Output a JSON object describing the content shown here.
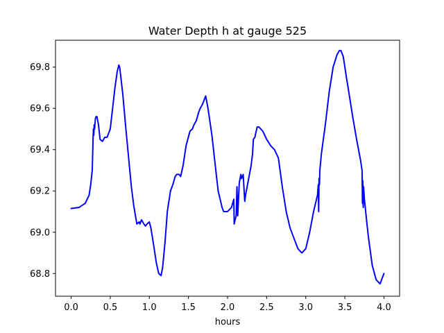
{
  "chart_data": {
    "type": "line",
    "title": "Water Depth h at gauge 525",
    "xlabel": "hours",
    "ylabel": "",
    "xlim": [
      -0.2,
      4.2
    ],
    "ylim": [
      68.69,
      69.93
    ],
    "xticks": [
      "0.0",
      "0.5",
      "1.0",
      "1.5",
      "2.0",
      "2.5",
      "3.0",
      "3.5",
      "4.0"
    ],
    "yticks": [
      "68.8",
      "69.0",
      "69.2",
      "69.4",
      "69.6",
      "69.8"
    ],
    "grid": false,
    "colors": {
      "line": "#0000ff",
      "frame": "#000000"
    },
    "series": [
      {
        "x": [
          0.0,
          0.1,
          0.18,
          0.23,
          0.25,
          0.27,
          0.28,
          0.285,
          0.29,
          0.295,
          0.3,
          0.31,
          0.32,
          0.33,
          0.35,
          0.37,
          0.4,
          0.43,
          0.46,
          0.5,
          0.53,
          0.56,
          0.59,
          0.61,
          0.62,
          0.63,
          0.66,
          0.7,
          0.72,
          0.75,
          0.77,
          0.8,
          0.84,
          0.87,
          0.88,
          0.9,
          0.93,
          0.95,
          0.97,
          1.0,
          1.02,
          1.05,
          1.07,
          1.09,
          1.12,
          1.15,
          1.17,
          1.2,
          1.23,
          1.27,
          1.3,
          1.33,
          1.35,
          1.38,
          1.4,
          1.43,
          1.47,
          1.52,
          1.55,
          1.57,
          1.6,
          1.63,
          1.65,
          1.68,
          1.72,
          1.75,
          1.8,
          1.85,
          1.88,
          1.93,
          1.95,
          2.0,
          2.05,
          2.08,
          2.085,
          2.09,
          2.11,
          2.12,
          2.13,
          2.15,
          2.16,
          2.17,
          2.18,
          2.2,
          2.22,
          2.23,
          2.25,
          2.28,
          2.3,
          2.32,
          2.33,
          2.35,
          2.36,
          2.38,
          2.4,
          2.45,
          2.5,
          2.55,
          2.6,
          2.65,
          2.7,
          2.75,
          2.8,
          2.85,
          2.9,
          2.95,
          3.0,
          3.05,
          3.1,
          3.15,
          3.16,
          3.165,
          3.17,
          3.175,
          3.18,
          3.2,
          3.25,
          3.3,
          3.35,
          3.4,
          3.43,
          3.45,
          3.48,
          3.52,
          3.55,
          3.6,
          3.65,
          3.7,
          3.72,
          3.725,
          3.73,
          3.735,
          3.74,
          3.75,
          3.78,
          3.8,
          3.85,
          3.9,
          3.95,
          4.0
        ],
        "y": [
          69.115,
          69.12,
          69.14,
          69.18,
          69.23,
          69.3,
          69.45,
          69.5,
          69.47,
          69.52,
          69.5,
          69.55,
          69.56,
          69.56,
          69.52,
          69.45,
          69.44,
          69.46,
          69.46,
          69.5,
          69.6,
          69.7,
          69.78,
          69.81,
          69.8,
          69.77,
          69.67,
          69.5,
          69.42,
          69.3,
          69.22,
          69.13,
          69.04,
          69.05,
          69.04,
          69.06,
          69.04,
          69.03,
          69.04,
          69.05,
          69.02,
          68.95,
          68.9,
          68.85,
          68.8,
          68.79,
          68.83,
          68.95,
          69.1,
          69.2,
          69.23,
          69.27,
          69.28,
          69.28,
          69.27,
          69.32,
          69.42,
          69.49,
          69.5,
          69.52,
          69.54,
          69.58,
          69.6,
          69.62,
          69.66,
          69.6,
          69.47,
          69.3,
          69.2,
          69.12,
          69.1,
          69.1,
          69.12,
          69.16,
          69.04,
          69.05,
          69.08,
          69.22,
          69.08,
          69.24,
          69.26,
          69.28,
          69.26,
          69.28,
          69.15,
          69.18,
          69.22,
          69.28,
          69.32,
          69.38,
          69.45,
          69.46,
          69.48,
          69.51,
          69.51,
          69.49,
          69.45,
          69.42,
          69.4,
          69.36,
          69.22,
          69.1,
          69.02,
          68.97,
          68.92,
          68.9,
          68.92,
          69.0,
          69.1,
          69.18,
          69.23,
          69.1,
          69.26,
          69.23,
          69.3,
          69.38,
          69.52,
          69.68,
          69.8,
          69.86,
          69.88,
          69.88,
          69.85,
          69.75,
          69.68,
          69.56,
          69.45,
          69.35,
          69.3,
          69.14,
          69.25,
          69.12,
          69.22,
          69.16,
          69.05,
          68.98,
          68.84,
          68.77,
          68.75,
          68.8
        ]
      }
    ]
  }
}
